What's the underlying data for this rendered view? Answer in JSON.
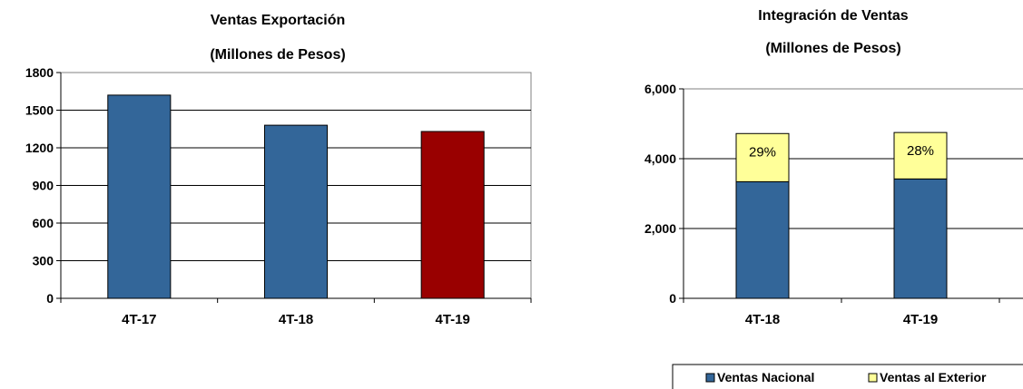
{
  "chart_data": [
    {
      "type": "bar",
      "title": "Ventas Exportación",
      "subtitle": "(Millones de Pesos)",
      "categories": [
        "4T-17",
        "4T-18",
        "4T-19"
      ],
      "values": [
        1620,
        1380,
        1330
      ],
      "bar_colors": [
        "#336699",
        "#336699",
        "#990000"
      ],
      "ylim": [
        0,
        1800
      ],
      "yticks": [
        0,
        300,
        600,
        900,
        1200,
        1500,
        1800
      ],
      "ytick_labels": [
        "0",
        "300",
        "600",
        "900",
        "1200",
        "1500",
        "1800"
      ],
      "grid": true,
      "xlabel": "",
      "ylabel": ""
    },
    {
      "type": "bar",
      "stacked": true,
      "title": "Integración de Ventas",
      "subtitle": "(Millones de Pesos)",
      "categories": [
        "4T-18",
        "4T-19"
      ],
      "series": [
        {
          "name": "Ventas Nacional",
          "color": "#336699",
          "values": [
            3340,
            3420
          ]
        },
        {
          "name": "Ventas al Exterior",
          "color": "#FFFF99",
          "values": [
            1380,
            1330
          ],
          "data_labels": [
            "29%",
            "28%"
          ]
        }
      ],
      "ylim": [
        0,
        6000
      ],
      "yticks": [
        0,
        2000,
        4000,
        6000
      ],
      "ytick_labels": [
        "0",
        "2,000",
        "4,000",
        "6,000"
      ],
      "grid": true,
      "legend_position": "bottom",
      "xlabel": "",
      "ylabel": ""
    }
  ]
}
